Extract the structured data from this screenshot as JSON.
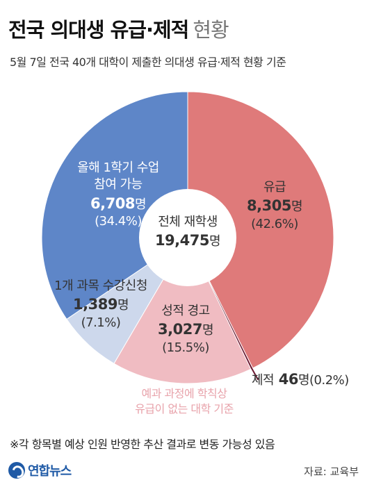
{
  "title": {
    "main": "전국 의대생 유급·제적",
    "sub": "현황"
  },
  "subtitle": "5월 7일 전국 40개 대학이 제출한 의대생 유급·제적 현황 기준",
  "colors": {
    "fail": "#df7a7a",
    "expel": "#6b1730",
    "warning": "#f0bcc2",
    "attending": "#5e86c8",
    "course": "#cdd8ec"
  },
  "chart_data": {
    "type": "pie",
    "donut": true,
    "center_label": {
      "title": "전체 재학생",
      "count": "19,475",
      "unit": "명"
    },
    "total": 19475,
    "slices": [
      {
        "key": "fail",
        "name": "유급",
        "value": 8305,
        "count": "8,305",
        "unit": "명",
        "percent": "(42.6%)",
        "percent_value": 42.6
      },
      {
        "key": "expel",
        "name": "제적",
        "value": 46,
        "count": "46",
        "unit": "명",
        "percent": "(0.2%)",
        "percent_value": 0.2
      },
      {
        "key": "warning",
        "name": "성적 경고",
        "value": 3027,
        "count": "3,027",
        "unit": "명",
        "percent": "(15.5%)",
        "percent_value": 15.5
      },
      {
        "key": "course",
        "name": "1개 과목 수강신청",
        "value": 1389,
        "count": "1,389",
        "unit": "명",
        "percent": "(7.1%)",
        "percent_value": 7.1
      },
      {
        "key": "attending",
        "name_line1": "올해 1학기 수업",
        "name_line2": "참여 가능",
        "value": 6708,
        "count": "6,708",
        "unit": "명",
        "percent": "(34.4%)",
        "percent_value": 34.4
      }
    ],
    "annotation": {
      "line1": "예과 과정에 학칙상",
      "line2": "유급이 없는 대학 기준"
    }
  },
  "footnote": "※각 항목별 예상 인원 반영한 추산 결과로 변동 가능성 있음",
  "logo": "연합뉴스",
  "source": "자료: 교육부"
}
